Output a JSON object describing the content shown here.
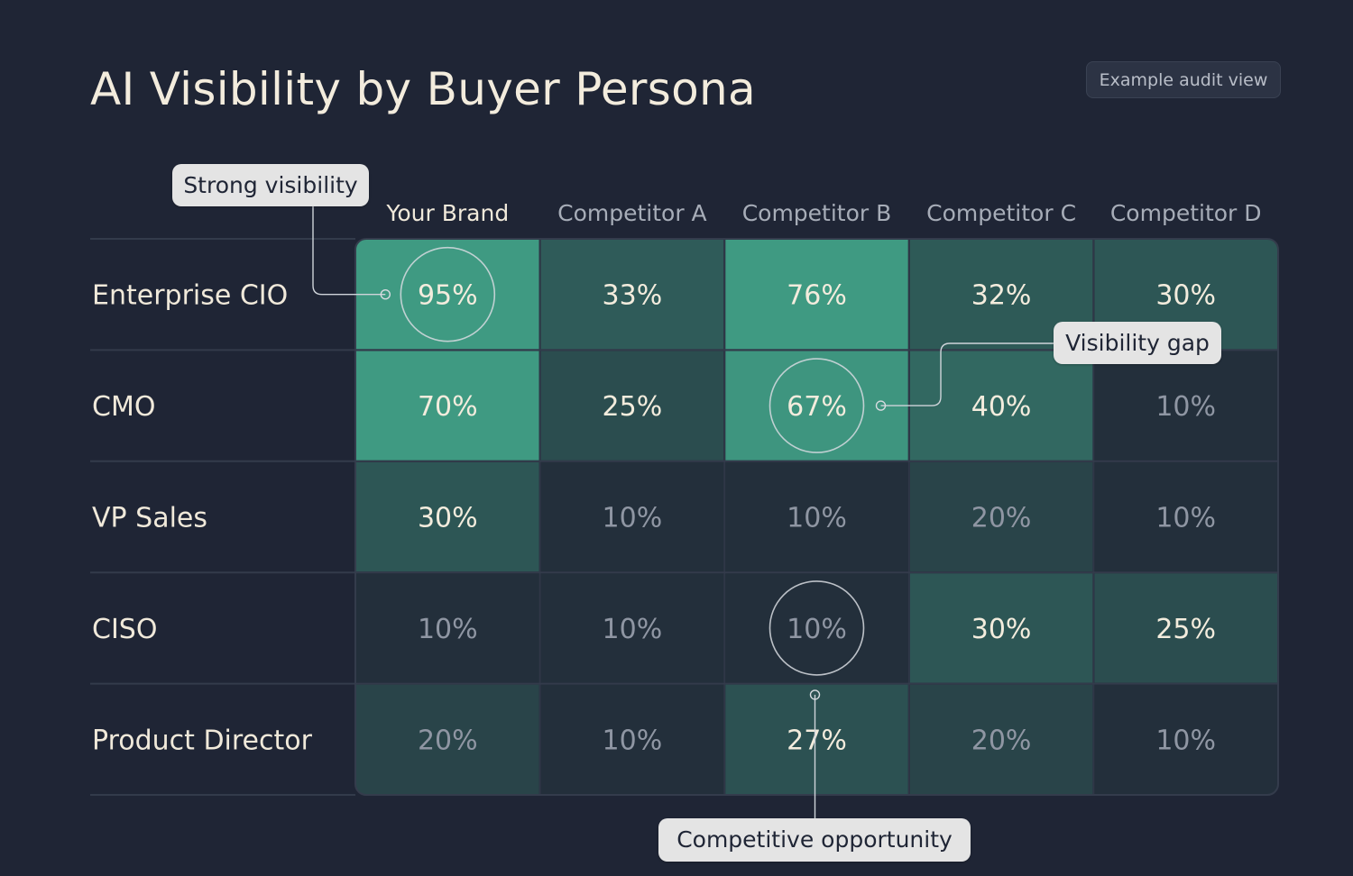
{
  "header": {
    "title": "AI Visibility by Buyer Persona",
    "badge": "Example audit view"
  },
  "chart_data": {
    "type": "heatmap",
    "title": "AI Visibility by Buyer Persona",
    "columns": [
      "Your Brand",
      "Competitor A",
      "Competitor B",
      "Competitor C",
      "Competitor D"
    ],
    "rows": [
      "Enterprise CIO",
      "CMO",
      "VP Sales",
      "CISO",
      "Product Director"
    ],
    "values": [
      [
        95,
        33,
        76,
        32,
        30
      ],
      [
        70,
        25,
        67,
        40,
        10
      ],
      [
        30,
        10,
        10,
        20,
        10
      ],
      [
        10,
        10,
        10,
        30,
        25
      ],
      [
        20,
        10,
        27,
        20,
        10
      ]
    ],
    "value_format": "percent",
    "colors": {
      "low": "#222a38",
      "high": "#3f9a82",
      "text_strong": "#f3ecdd",
      "text_muted": "#8f96a3"
    },
    "annotations": [
      {
        "label": "Strong visibility",
        "row": 0,
        "col": 0
      },
      {
        "label": "Visibility gap",
        "row": 1,
        "col": 2
      },
      {
        "label": "Competitive opportunity",
        "row": 3,
        "col": 2
      }
    ]
  }
}
